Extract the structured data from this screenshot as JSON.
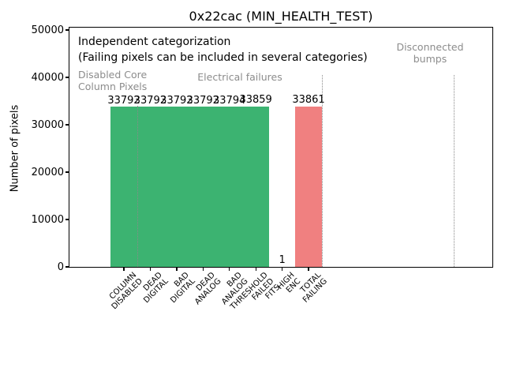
{
  "chart_data": {
    "type": "bar",
    "title": "0x22cac (MIN_HEALTH_TEST)",
    "ylabel": "Number of pixels",
    "ylim": [
      0,
      50000
    ],
    "yticks": [
      0,
      10000,
      20000,
      30000,
      40000,
      50000
    ],
    "grid": false,
    "legend": "none",
    "categories": [
      "COLUMN\nDISABLED",
      "DEAD\nDIGITAL",
      "BAD\nDIGITAL",
      "DEAD\nANALOG",
      "BAD\nANALOG",
      "THRESHOLD\nFAILED\nFITS",
      "HIGH\nENC",
      "TOTAL\nFAILING"
    ],
    "values": [
      33792,
      33792,
      33792,
      33792,
      33794,
      33859,
      1,
      33861
    ],
    "value_labels": [
      "33792",
      "33792",
      "33792",
      "33792",
      "33794",
      "33859",
      "1",
      "33861"
    ],
    "bar_colors": [
      "#3cb371",
      "#3cb371",
      "#3cb371",
      "#3cb371",
      "#3cb371",
      "#3cb371",
      "#3cb371",
      "#f08080"
    ],
    "separators_x_category": [
      0.5,
      7.5,
      12.5
    ],
    "annotations": {
      "line1": "Independent categorization",
      "line2": "(Failing pixels can be included in several categories)",
      "group_disabled": "Disabled Core\nColumn Pixels",
      "group_electrical": "Electrical failures",
      "group_disconnected": "Disconnected\nbumps"
    },
    "colors": {
      "pass_green": "#3cb371",
      "fail_red": "#f08080",
      "grey_text": "#8c8c8c",
      "separator_grey": "#8a8a8a"
    }
  }
}
